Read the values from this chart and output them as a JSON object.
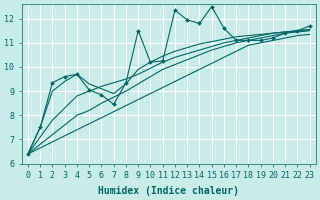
{
  "xlabel": "Humidex (Indice chaleur)",
  "bg_color": "#c8ece8",
  "grid_color": "#ffffff",
  "line_color": "#006666",
  "xlim": [
    -0.5,
    23.5
  ],
  "ylim": [
    6,
    12.6
  ],
  "yticks": [
    6,
    7,
    8,
    9,
    10,
    11,
    12
  ],
  "xticks": [
    0,
    1,
    2,
    3,
    4,
    5,
    6,
    7,
    8,
    9,
    10,
    11,
    12,
    13,
    14,
    15,
    16,
    17,
    18,
    19,
    20,
    21,
    22,
    23
  ],
  "jagged": [
    6.4,
    7.5,
    9.35,
    9.6,
    9.7,
    9.05,
    8.85,
    8.45,
    9.35,
    11.5,
    10.2,
    10.25,
    12.35,
    11.95,
    11.8,
    12.5,
    11.6,
    11.1,
    11.1,
    11.1,
    11.2,
    11.4,
    11.5,
    11.7
  ],
  "trend1": [
    6.4,
    6.65,
    6.9,
    7.15,
    7.4,
    7.65,
    7.9,
    8.15,
    8.4,
    8.65,
    8.9,
    9.15,
    9.4,
    9.65,
    9.9,
    10.15,
    10.4,
    10.65,
    10.9,
    11.0,
    11.1,
    11.2,
    11.3,
    11.35
  ],
  "trend2": [
    6.4,
    6.8,
    7.2,
    7.6,
    8.0,
    8.2,
    8.5,
    8.75,
    9.0,
    9.3,
    9.6,
    9.9,
    10.1,
    10.3,
    10.5,
    10.7,
    10.85,
    11.0,
    11.1,
    11.2,
    11.3,
    11.4,
    11.45,
    11.5
  ],
  "trend3": [
    6.4,
    7.1,
    7.8,
    8.3,
    8.8,
    9.0,
    9.2,
    9.35,
    9.5,
    9.7,
    9.95,
    10.2,
    10.4,
    10.55,
    10.7,
    10.85,
    11.0,
    11.1,
    11.2,
    11.3,
    11.4,
    11.45,
    11.5,
    11.55
  ],
  "trend4": [
    6.4,
    7.5,
    9.0,
    9.4,
    9.7,
    9.3,
    9.1,
    8.9,
    9.3,
    9.9,
    10.2,
    10.45,
    10.65,
    10.8,
    10.95,
    11.05,
    11.15,
    11.25,
    11.3,
    11.35,
    11.4,
    11.45,
    11.5,
    11.55
  ],
  "xlabel_fontsize": 7,
  "tick_fontsize": 6
}
